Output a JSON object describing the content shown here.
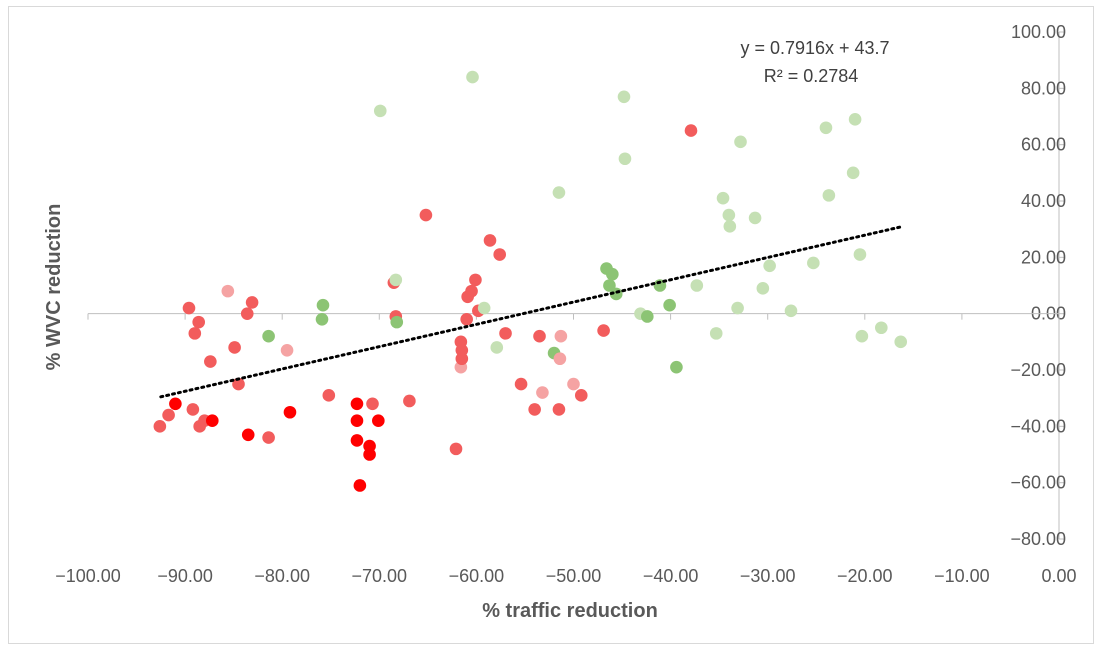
{
  "chart_data": {
    "type": "scatter",
    "title": "",
    "xlabel": "% traffic reduction",
    "ylabel": "% WVC reduction",
    "xlim": [
      -100,
      0
    ],
    "ylim": [
      -80,
      100
    ],
    "x_ticks": [
      -100,
      -90,
      -80,
      -70,
      -60,
      -50,
      -40,
      -30,
      -20,
      -10,
      0
    ],
    "y_ticks": [
      100,
      80,
      60,
      40,
      20,
      0,
      -20,
      -40,
      -60,
      -80
    ],
    "x_tick_labels": [
      "−100.00",
      "−90.00",
      "−80.00",
      "−70.00",
      "−60.00",
      "−50.00",
      "−40.00",
      "−30.00",
      "−20.00",
      "−10.00",
      "0.00"
    ],
    "y_tick_labels": [
      "100.00",
      "80.00",
      "60.00",
      "40.00",
      "20.00",
      "0.00",
      "−20.00",
      "−40.00",
      "−60.00",
      "−80.00"
    ],
    "gridlines": false,
    "colors": {
      "strong_red": "#ff0000",
      "red": "#f25c5c",
      "light_red": "#f5a3a3",
      "green": "#8cc474",
      "light_green": "#c5e0b4",
      "trendline": "#000000",
      "axis": "#bfbfbf"
    },
    "points": [
      {
        "x": -92.6,
        "y": -40,
        "c": "red"
      },
      {
        "x": -91.7,
        "y": -36,
        "c": "red"
      },
      {
        "x": -91.0,
        "y": -32,
        "c": "strong_red"
      },
      {
        "x": -89.6,
        "y": 2,
        "c": "red"
      },
      {
        "x": -89.2,
        "y": -34,
        "c": "red"
      },
      {
        "x": -89.0,
        "y": -7,
        "c": "red"
      },
      {
        "x": -88.6,
        "y": -3,
        "c": "red"
      },
      {
        "x": -88.5,
        "y": -40,
        "c": "red"
      },
      {
        "x": -88.0,
        "y": -38,
        "c": "red"
      },
      {
        "x": -87.4,
        "y": -17,
        "c": "red"
      },
      {
        "x": -87.2,
        "y": -38,
        "c": "strong_red"
      },
      {
        "x": -85.6,
        "y": 8,
        "c": "light_red"
      },
      {
        "x": -84.9,
        "y": -12,
        "c": "red"
      },
      {
        "x": -84.5,
        "y": -25,
        "c": "red"
      },
      {
        "x": -83.6,
        "y": 0,
        "c": "red"
      },
      {
        "x": -83.1,
        "y": 4,
        "c": "red"
      },
      {
        "x": -83.5,
        "y": -43,
        "c": "strong_red"
      },
      {
        "x": -81.4,
        "y": -44,
        "c": "red"
      },
      {
        "x": -81.4,
        "y": -8,
        "c": "green"
      },
      {
        "x": -79.5,
        "y": -13,
        "c": "light_red"
      },
      {
        "x": -79.2,
        "y": -35,
        "c": "strong_red"
      },
      {
        "x": -75.8,
        "y": 3,
        "c": "green"
      },
      {
        "x": -75.9,
        "y": -2,
        "c": "green"
      },
      {
        "x": -75.2,
        "y": -29,
        "c": "red"
      },
      {
        "x": -72.3,
        "y": -32,
        "c": "strong_red"
      },
      {
        "x": -72.3,
        "y": -38,
        "c": "strong_red"
      },
      {
        "x": -72.3,
        "y": -45,
        "c": "strong_red"
      },
      {
        "x": -72.0,
        "y": -61,
        "c": "strong_red"
      },
      {
        "x": -71.0,
        "y": -47,
        "c": "strong_red"
      },
      {
        "x": -71.0,
        "y": -50,
        "c": "strong_red"
      },
      {
        "x": -70.7,
        "y": -32,
        "c": "red"
      },
      {
        "x": -70.1,
        "y": -38,
        "c": "strong_red"
      },
      {
        "x": -69.9,
        "y": 72,
        "c": "light_green"
      },
      {
        "x": -68.5,
        "y": 11,
        "c": "red"
      },
      {
        "x": -68.3,
        "y": 12,
        "c": "light_green"
      },
      {
        "x": -68.3,
        "y": -1,
        "c": "red"
      },
      {
        "x": -68.2,
        "y": -3,
        "c": "green"
      },
      {
        "x": -66.9,
        "y": -31,
        "c": "red"
      },
      {
        "x": -65.2,
        "y": 35,
        "c": "red"
      },
      {
        "x": -62.1,
        "y": -48,
        "c": "red"
      },
      {
        "x": -61.6,
        "y": -19,
        "c": "light_red"
      },
      {
        "x": -61.6,
        "y": -10,
        "c": "red"
      },
      {
        "x": -61.5,
        "y": -13,
        "c": "red"
      },
      {
        "x": -61.5,
        "y": -16,
        "c": "red"
      },
      {
        "x": -61.0,
        "y": -2,
        "c": "red"
      },
      {
        "x": -60.9,
        "y": 6,
        "c": "red"
      },
      {
        "x": -60.5,
        "y": 8,
        "c": "red"
      },
      {
        "x": -60.4,
        "y": 84,
        "c": "light_green"
      },
      {
        "x": -60.1,
        "y": 12,
        "c": "red"
      },
      {
        "x": -59.8,
        "y": 1,
        "c": "red"
      },
      {
        "x": -59.2,
        "y": 2,
        "c": "light_green"
      },
      {
        "x": -58.6,
        "y": 26,
        "c": "red"
      },
      {
        "x": -57.9,
        "y": -12,
        "c": "light_green"
      },
      {
        "x": -57.6,
        "y": 21,
        "c": "red"
      },
      {
        "x": -57.0,
        "y": -7,
        "c": "red"
      },
      {
        "x": -55.4,
        "y": -25,
        "c": "red"
      },
      {
        "x": -54.0,
        "y": -34,
        "c": "red"
      },
      {
        "x": -53.5,
        "y": -8,
        "c": "red"
      },
      {
        "x": -53.2,
        "y": -28,
        "c": "light_red"
      },
      {
        "x": -52.0,
        "y": -14,
        "c": "green"
      },
      {
        "x": -51.5,
        "y": 43,
        "c": "light_green"
      },
      {
        "x": -51.5,
        "y": -34,
        "c": "red"
      },
      {
        "x": -51.3,
        "y": -8,
        "c": "light_red"
      },
      {
        "x": -51.4,
        "y": -16,
        "c": "light_red"
      },
      {
        "x": -50.0,
        "y": -25,
        "c": "light_red"
      },
      {
        "x": -49.2,
        "y": -29,
        "c": "red"
      },
      {
        "x": -46.9,
        "y": -6,
        "c": "red"
      },
      {
        "x": -46.6,
        "y": 16,
        "c": "green"
      },
      {
        "x": -46.3,
        "y": 10,
        "c": "green"
      },
      {
        "x": -46.0,
        "y": 14,
        "c": "green"
      },
      {
        "x": -45.6,
        "y": 7,
        "c": "green"
      },
      {
        "x": -44.8,
        "y": 77,
        "c": "light_green"
      },
      {
        "x": -44.7,
        "y": 55,
        "c": "light_green"
      },
      {
        "x": -43.1,
        "y": 0,
        "c": "light_green"
      },
      {
        "x": -42.4,
        "y": -1,
        "c": "green"
      },
      {
        "x": -41.1,
        "y": 10,
        "c": "green"
      },
      {
        "x": -40.1,
        "y": 3,
        "c": "green"
      },
      {
        "x": -39.4,
        "y": -19,
        "c": "green"
      },
      {
        "x": -37.9,
        "y": 65,
        "c": "red"
      },
      {
        "x": -37.3,
        "y": 10,
        "c": "light_green"
      },
      {
        "x": -35.3,
        "y": -7,
        "c": "light_green"
      },
      {
        "x": -34.6,
        "y": 41,
        "c": "light_green"
      },
      {
        "x": -34.0,
        "y": 35,
        "c": "light_green"
      },
      {
        "x": -33.9,
        "y": 31,
        "c": "light_green"
      },
      {
        "x": -33.1,
        "y": 2,
        "c": "light_green"
      },
      {
        "x": -32.8,
        "y": 61,
        "c": "light_green"
      },
      {
        "x": -31.3,
        "y": 34,
        "c": "light_green"
      },
      {
        "x": -30.5,
        "y": 9,
        "c": "light_green"
      },
      {
        "x": -29.8,
        "y": 17,
        "c": "light_green"
      },
      {
        "x": -27.6,
        "y": 1,
        "c": "light_green"
      },
      {
        "x": -25.3,
        "y": 18,
        "c": "light_green"
      },
      {
        "x": -24.0,
        "y": 66,
        "c": "light_green"
      },
      {
        "x": -23.7,
        "y": 42,
        "c": "light_green"
      },
      {
        "x": -21.2,
        "y": 50,
        "c": "light_green"
      },
      {
        "x": -21.0,
        "y": 69,
        "c": "light_green"
      },
      {
        "x": -20.5,
        "y": 21,
        "c": "light_green"
      },
      {
        "x": -20.3,
        "y": -8,
        "c": "light_green"
      },
      {
        "x": -18.3,
        "y": -5,
        "c": "light_green"
      },
      {
        "x": -16.3,
        "y": -10,
        "c": "light_green"
      }
    ],
    "trendline": {
      "type": "linear",
      "slope": 0.7916,
      "intercept": 43.7,
      "x_range": [
        -92.5,
        -16.3
      ],
      "equation": "y = 0.7916x + 43.7",
      "r_squared": "R² = 0.2784"
    }
  }
}
